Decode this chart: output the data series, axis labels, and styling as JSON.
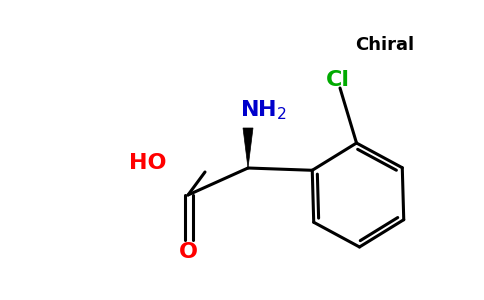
{
  "bg_color": "#ffffff",
  "bond_color": "#000000",
  "ho_color": "#ff0000",
  "o_color": "#ff0000",
  "nh2_color": "#0000cc",
  "cl_color": "#00aa00",
  "chiral_color": "#000000",
  "line_width": 2.2,
  "fig_width": 4.84,
  "fig_height": 3.0,
  "dpi": 100,
  "chiral_text": "Chiral",
  "cl_text": "Cl",
  "ho_text": "HO",
  "o_text": "O",
  "nh2_text": "NH",
  "nh2_sub": "2"
}
